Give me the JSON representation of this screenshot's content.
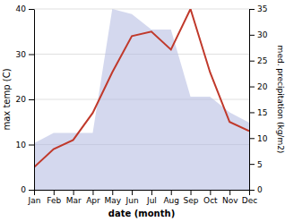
{
  "chart_data": {
    "type": "line",
    "categories": [
      "Jan",
      "Feb",
      "Mar",
      "Apr",
      "May",
      "Jun",
      "Jul",
      "Aug",
      "Sep",
      "Oct",
      "Nov",
      "Dec"
    ],
    "xlabel": "date (month)",
    "ylabel": "max temp (C)",
    "y2label": "med. precipitation (kg/m2)",
    "series": [
      {
        "type": "area",
        "axis": "y2",
        "color": "#b0b8e0",
        "values": [
          9,
          11,
          11,
          11,
          35,
          34,
          31,
          31,
          18,
          18,
          15,
          13
        ]
      },
      {
        "type": "line",
        "color": "#c0392b",
        "values": [
          5,
          9,
          11,
          17,
          26,
          34,
          35,
          31,
          40,
          26,
          15,
          13
        ]
      }
    ],
    "ylim": [
      0,
      40
    ],
    "yticks": [
      0,
      10,
      20,
      30,
      40
    ],
    "y2lim": [
      0,
      35
    ],
    "y2ticks": [
      0,
      5,
      10,
      15,
      20,
      25,
      30,
      35
    ],
    "grid": true
  }
}
